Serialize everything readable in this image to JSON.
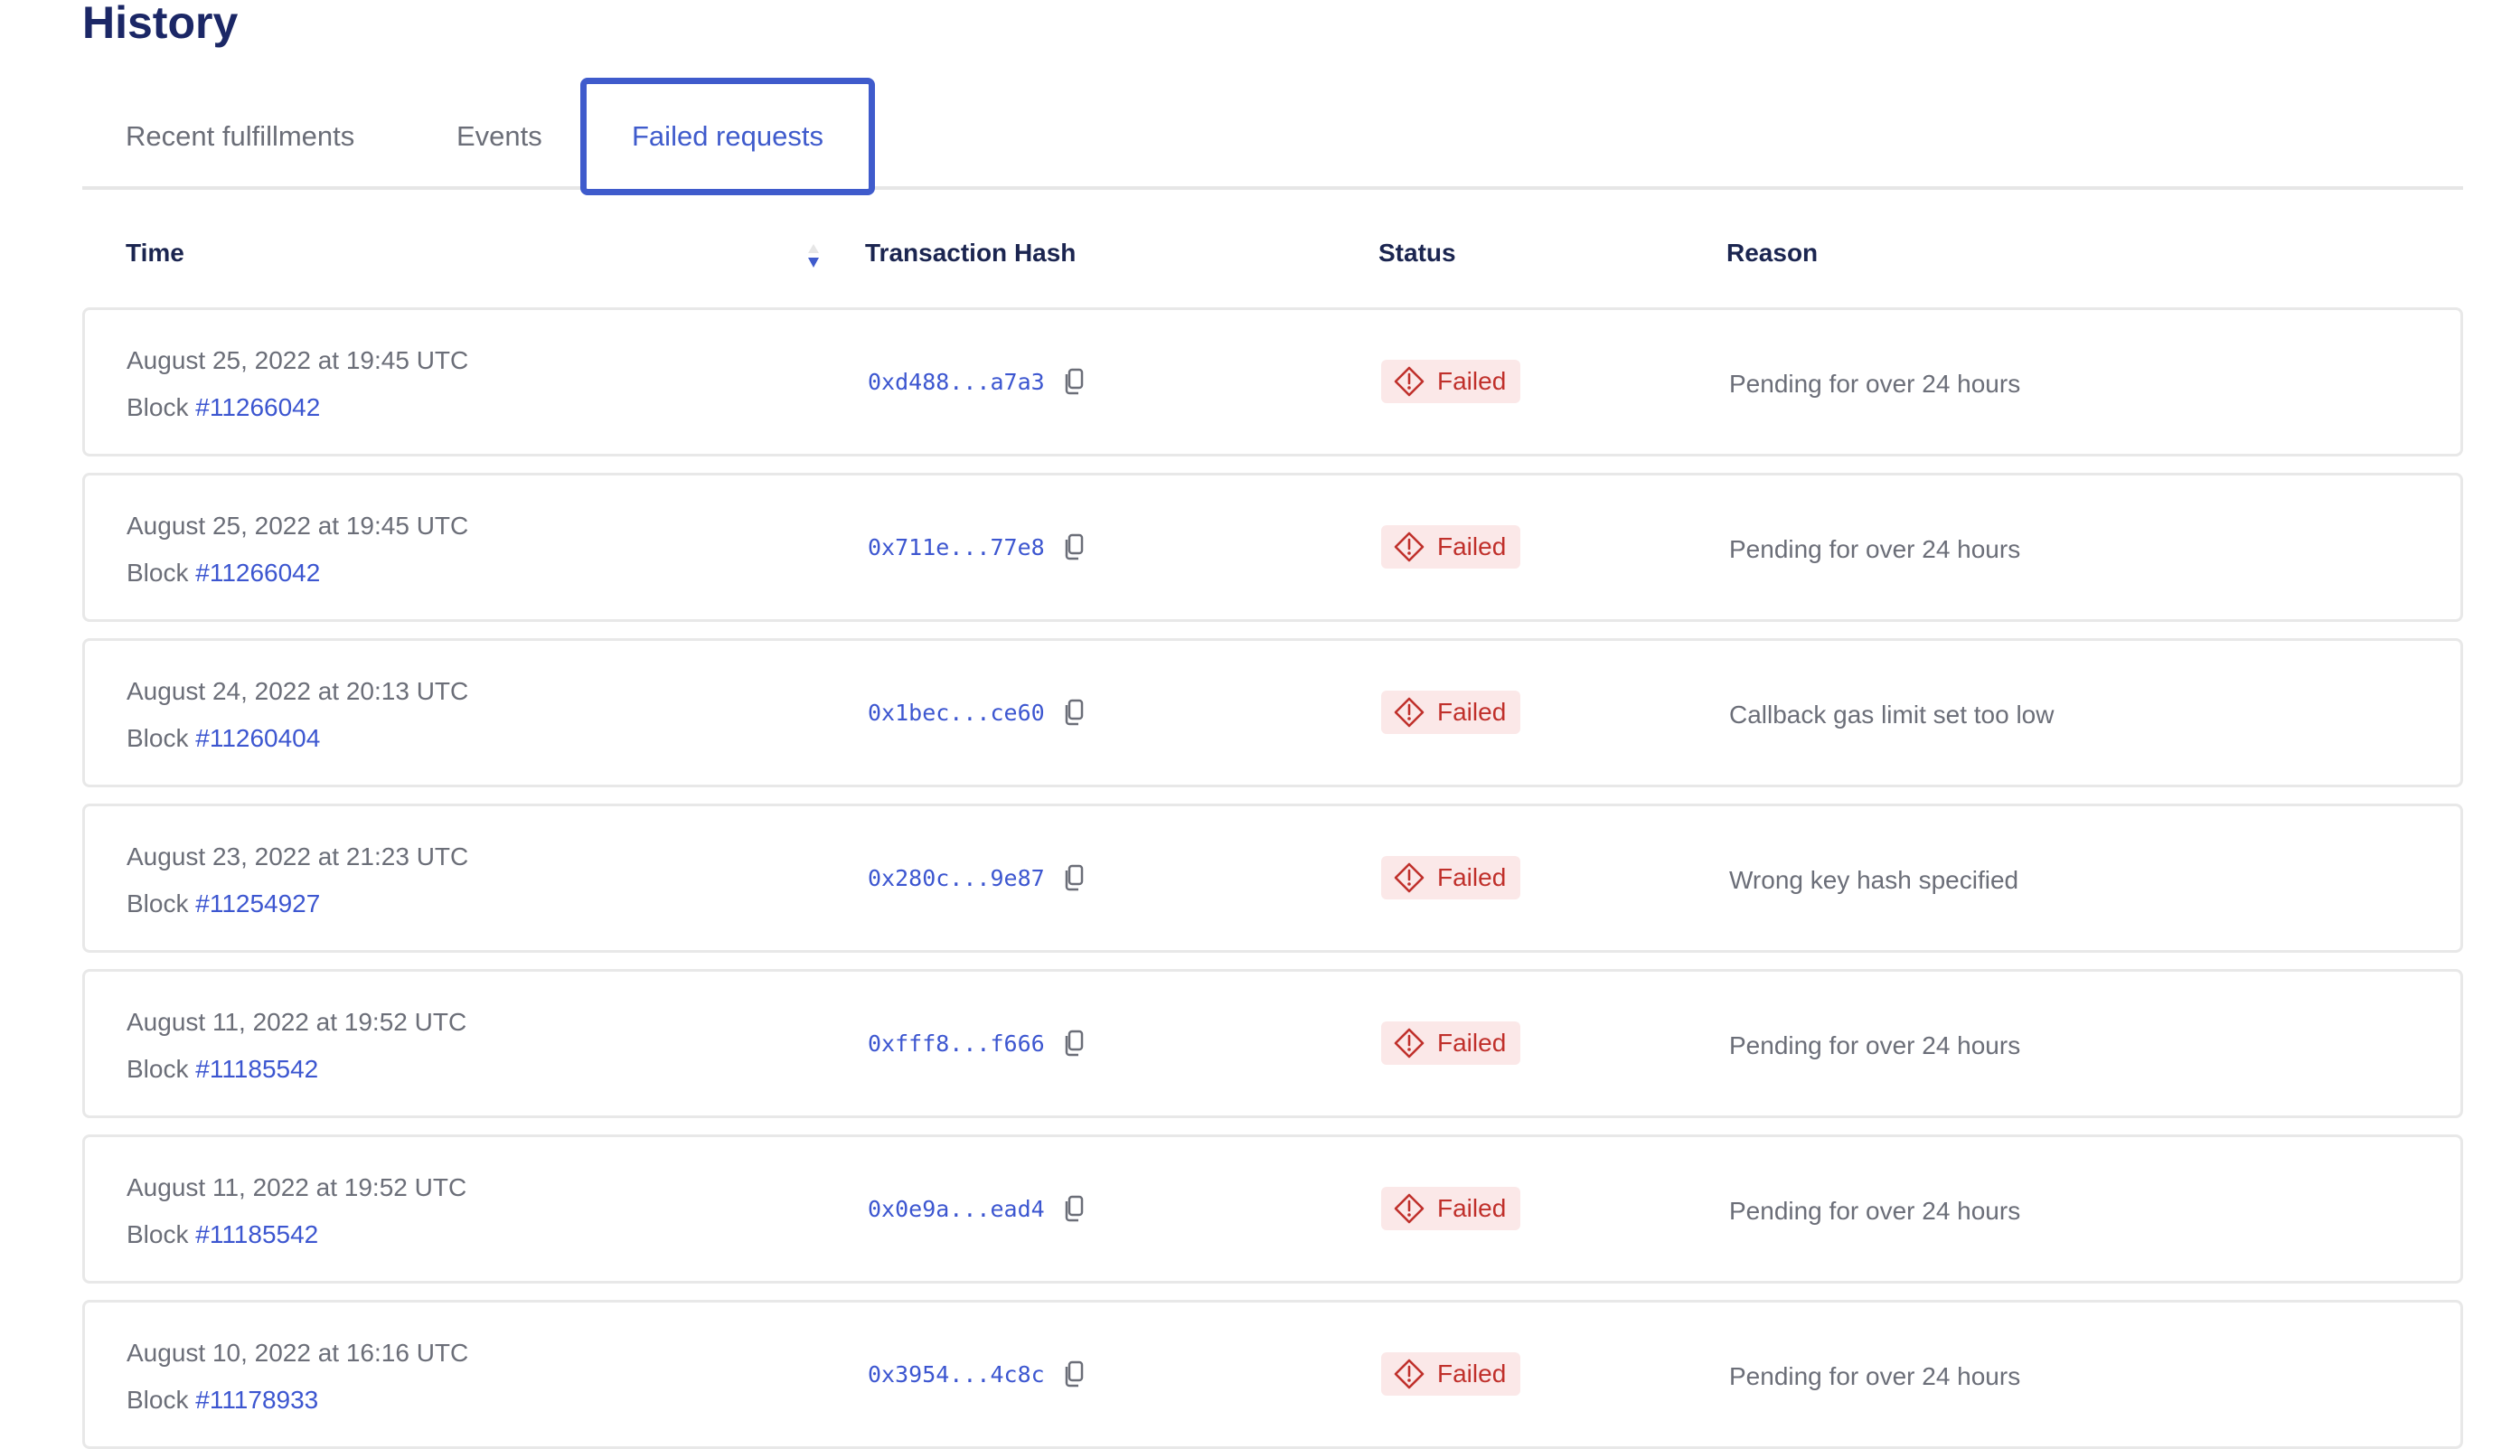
{
  "page": {
    "title": "History"
  },
  "colors": {
    "accent": "#3f5bcc",
    "link": "#3c56d0",
    "failed_text": "#c0302b",
    "failed_bg": "#fbe8e8",
    "heading": "#1b2766"
  },
  "tabs": [
    {
      "label": "Recent fulfillments",
      "active": false
    },
    {
      "label": "Events",
      "active": false
    },
    {
      "label": "Failed requests",
      "active": true
    }
  ],
  "table": {
    "columns": [
      "Time",
      "Transaction Hash",
      "Status",
      "Reason"
    ],
    "sort": {
      "column": "Time",
      "direction": "descending"
    },
    "block_prefix": "Block ",
    "rows": [
      {
        "time": "August 25, 2022 at 19:45 UTC",
        "block": "#11266042",
        "hash": "0xd488...a7a3",
        "status": "Failed",
        "reason": "Pending for over 24 hours"
      },
      {
        "time": "August 25, 2022 at 19:45 UTC",
        "block": "#11266042",
        "hash": "0x711e...77e8",
        "status": "Failed",
        "reason": "Pending for over 24 hours"
      },
      {
        "time": "August 24, 2022 at 20:13 UTC",
        "block": "#11260404",
        "hash": "0x1bec...ce60",
        "status": "Failed",
        "reason": "Callback gas limit set too low"
      },
      {
        "time": "August 23, 2022 at 21:23 UTC",
        "block": "#11254927",
        "hash": "0x280c...9e87",
        "status": "Failed",
        "reason": "Wrong key hash specified"
      },
      {
        "time": "August 11, 2022 at 19:52 UTC",
        "block": "#11185542",
        "hash": "0xfff8...f666",
        "status": "Failed",
        "reason": "Pending for over 24 hours"
      },
      {
        "time": "August 11, 2022 at 19:52 UTC",
        "block": "#11185542",
        "hash": "0x0e9a...ead4",
        "status": "Failed",
        "reason": "Pending for over 24 hours"
      },
      {
        "time": "August 10, 2022 at 16:16 UTC",
        "block": "#11178933",
        "hash": "0x3954...4c8c",
        "status": "Failed",
        "reason": "Pending for over 24 hours"
      }
    ]
  },
  "icons": {
    "copy": "copy-icon",
    "status": "alert-diamond-icon",
    "sort": "sort-arrows-icon"
  }
}
